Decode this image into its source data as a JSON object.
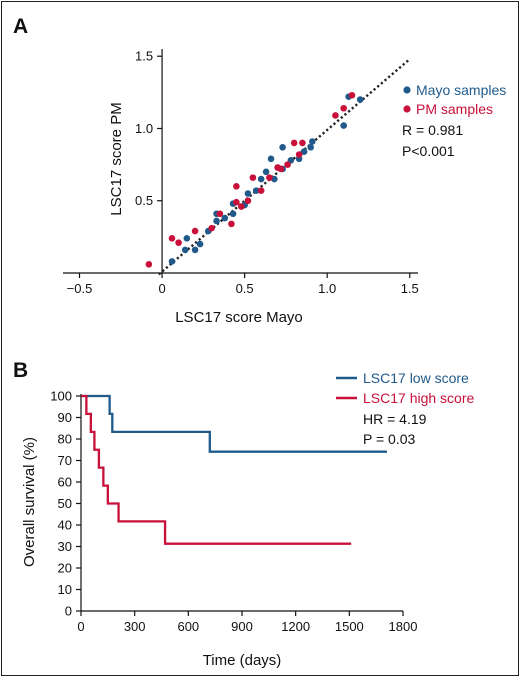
{
  "colors": {
    "blue": "#1f5a8b",
    "red": "#c8103a",
    "fitline": "#222222"
  },
  "chart_data": [
    {
      "panel": "A",
      "type": "scatter",
      "xlabel": "LSC17 score Mayo",
      "ylabel": "LSC17 score PM",
      "xlim": [
        -0.6,
        1.55
      ],
      "ylim": [
        0,
        1.55
      ],
      "xticks": [
        "−0.5",
        "0",
        "0.5",
        "1.0",
        "1.5"
      ],
      "xtick_values": [
        -0.5,
        0,
        0.5,
        1.0,
        1.5
      ],
      "yticks": [
        "0.5",
        "1.0",
        "1.5"
      ],
      "ytick_values": [
        0.5,
        1.0,
        1.5
      ],
      "fit_line": {
        "x0": -0.02,
        "y0": -0.01,
        "x1": 1.5,
        "y1": 1.48
      },
      "annotations": [
        "R = 0.981",
        "P<0.001"
      ],
      "legend_position": "top-right",
      "series": [
        {
          "name": "Mayo samples",
          "color": "#1f5a8b",
          "points": [
            [
              0.06,
              0.08
            ],
            [
              0.15,
              0.24
            ],
            [
              0.14,
              0.16
            ],
            [
              0.2,
              0.16
            ],
            [
              0.23,
              0.2
            ],
            [
              0.28,
              0.29
            ],
            [
              0.33,
              0.36
            ],
            [
              0.33,
              0.41
            ],
            [
              0.38,
              0.38
            ],
            [
              0.43,
              0.41
            ],
            [
              0.43,
              0.48
            ],
            [
              0.5,
              0.47
            ],
            [
              0.52,
              0.55
            ],
            [
              0.57,
              0.57
            ],
            [
              0.6,
              0.65
            ],
            [
              0.63,
              0.7
            ],
            [
              0.66,
              0.79
            ],
            [
              0.68,
              0.65
            ],
            [
              0.7,
              0.73
            ],
            [
              0.73,
              0.72
            ],
            [
              0.73,
              0.87
            ],
            [
              0.78,
              0.78
            ],
            [
              0.83,
              0.79
            ],
            [
              0.86,
              0.84
            ],
            [
              0.9,
              0.87
            ],
            [
              0.91,
              0.91
            ],
            [
              1.1,
              1.02
            ],
            [
              1.13,
              1.22
            ],
            [
              1.2,
              1.2
            ]
          ]
        },
        {
          "name": "PM samples",
          "color": "#c8103a",
          "points": [
            [
              -0.08,
              0.06
            ],
            [
              0.06,
              0.24
            ],
            [
              0.1,
              0.21
            ],
            [
              0.2,
              0.29
            ],
            [
              0.3,
              0.31
            ],
            [
              0.35,
              0.41
            ],
            [
              0.42,
              0.34
            ],
            [
              0.45,
              0.49
            ],
            [
              0.45,
              0.6
            ],
            [
              0.48,
              0.46
            ],
            [
              0.52,
              0.5
            ],
            [
              0.55,
              0.66
            ],
            [
              0.6,
              0.57
            ],
            [
              0.65,
              0.66
            ],
            [
              0.7,
              0.73
            ],
            [
              0.72,
              0.72
            ],
            [
              0.76,
              0.75
            ],
            [
              0.8,
              0.9
            ],
            [
              0.83,
              0.82
            ],
            [
              0.85,
              0.9
            ],
            [
              1.05,
              1.09
            ],
            [
              1.15,
              1.23
            ],
            [
              1.1,
              1.14
            ]
          ]
        }
      ]
    },
    {
      "panel": "B",
      "type": "line",
      "xlabel": "Time (days)",
      "ylabel": "Overall survival (%)",
      "xlim": [
        0,
        1800
      ],
      "ylim": [
        0,
        100
      ],
      "xticks": [
        "0",
        "300",
        "600",
        "900",
        "1200",
        "1500",
        "1800"
      ],
      "xtick_values": [
        0,
        300,
        600,
        900,
        1200,
        1500,
        1800
      ],
      "yticks": [
        "0",
        "10",
        "20",
        "30",
        "40",
        "50",
        "60",
        "70",
        "80",
        "90",
        "100"
      ],
      "ytick_values": [
        0,
        10,
        20,
        30,
        40,
        50,
        60,
        70,
        80,
        90,
        100
      ],
      "step": true,
      "annotations": [
        "HR = 4.19",
        "P = 0.03"
      ],
      "legend_position": "top-right",
      "series": [
        {
          "name": "LSC17 low score",
          "color": "#1f5a8b",
          "x": [
            0,
            160,
            160,
            175,
            175,
            720,
            720,
            1710
          ],
          "y": [
            100,
            100,
            91.7,
            91.7,
            83.3,
            83.3,
            74.1,
            74.1
          ]
        },
        {
          "name": "LSC17 high score",
          "color": "#c8103a",
          "x": [
            0,
            30,
            30,
            55,
            55,
            75,
            75,
            100,
            100,
            125,
            125,
            150,
            150,
            210,
            210,
            470,
            470,
            1510
          ],
          "y": [
            100,
            100,
            91.7,
            91.7,
            83.3,
            83.3,
            75,
            75,
            66.7,
            66.7,
            58.3,
            58.3,
            50,
            50,
            41.7,
            41.7,
            31.3,
            31.3
          ]
        }
      ]
    }
  ]
}
